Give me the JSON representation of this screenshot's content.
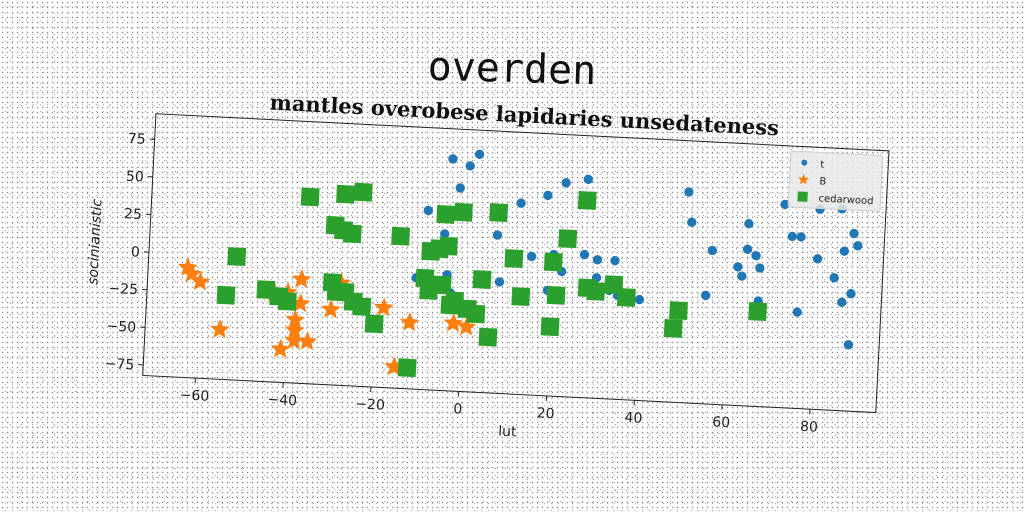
{
  "suptitle": "overden",
  "chart_data": {
    "type": "scatter",
    "title": "mantles overobese lapidaries unsedateness",
    "xlabel": "lut",
    "ylabel": "socinianistic",
    "xlim": [
      -72,
      95
    ],
    "ylim": [
      -82,
      92
    ],
    "xticks": [
      -60,
      -40,
      -20,
      0,
      20,
      40,
      60,
      80
    ],
    "yticks": [
      -75,
      -50,
      -25,
      0,
      25,
      50,
      75
    ],
    "xtick_labels": [
      "−60",
      "−40",
      "−20",
      "0",
      "20",
      "40",
      "60",
      "80"
    ],
    "ytick_labels": [
      "−75",
      "−50",
      "−25",
      "0",
      "25",
      "50",
      "75"
    ],
    "grid": false,
    "legend_position": "upper right",
    "series": [
      {
        "name": "t",
        "marker": "circle",
        "color": "#1f77b4",
        "points": [
          [
            -4,
            72
          ],
          [
            0,
            68
          ],
          [
            2,
            76
          ],
          [
            -2,
            53
          ],
          [
            8,
            38
          ],
          [
            -9,
            37
          ],
          [
            12,
            45
          ],
          [
            18,
            51
          ],
          [
            22,
            60
          ],
          [
            27,
            63
          ],
          [
            28,
            50
          ],
          [
            50,
            58
          ],
          [
            51,
            38
          ],
          [
            64,
            39
          ],
          [
            72,
            53
          ],
          [
            76,
            32
          ],
          [
            80,
            51
          ],
          [
            85,
            52
          ],
          [
            88,
            36
          ],
          [
            7,
            23
          ],
          [
            -5,
            22
          ],
          [
            15,
            10
          ],
          [
            20,
            12
          ],
          [
            27,
            13
          ],
          [
            30,
            10
          ],
          [
            34,
            10
          ],
          [
            22,
            1
          ],
          [
            30,
            -2
          ],
          [
            33,
            -10
          ],
          [
            35,
            -13
          ],
          [
            40,
            -15
          ],
          [
            -11,
            -8
          ],
          [
            -4,
            -5
          ],
          [
            -3,
            -17
          ],
          [
            8,
            -8
          ],
          [
            19,
            -12
          ],
          [
            56,
            20
          ],
          [
            62,
            10
          ],
          [
            63,
            4
          ],
          [
            64,
            22
          ],
          [
            66,
            18
          ],
          [
            67,
            10
          ],
          [
            67,
            -12
          ],
          [
            55,
            -10
          ],
          [
            74,
            32
          ],
          [
            80,
            18
          ],
          [
            86,
            24
          ],
          [
            89,
            28
          ],
          [
            84,
            6
          ],
          [
            88,
            -4
          ],
          [
            86,
            -10
          ],
          [
            76,
            -18
          ],
          [
            88,
            -38
          ]
        ]
      },
      {
        "name": "B",
        "marker": "star",
        "color": "#ff7f0e",
        "points": [
          [
            -63,
            -9
          ],
          [
            -62,
            -13
          ],
          [
            -60,
            -18
          ],
          [
            -55,
            -49
          ],
          [
            -43,
            -23
          ],
          [
            -40,
            -22
          ],
          [
            -38,
            -40
          ],
          [
            -38,
            -47
          ],
          [
            -38,
            -54
          ],
          [
            -35,
            -54
          ],
          [
            -41,
            -60
          ],
          [
            -37,
            -13
          ],
          [
            -37,
            -29
          ],
          [
            -28,
            -14
          ],
          [
            -30,
            -32
          ],
          [
            -18,
            -29
          ],
          [
            -12,
            -38
          ],
          [
            -15,
            -68
          ],
          [
            -2,
            -37
          ],
          [
            1,
            -39
          ]
        ]
      },
      {
        "name": "cedarwood",
        "marker": "square",
        "color": "#2ca02c",
        "points": [
          [
            -52,
            0
          ],
          [
            -54,
            -26
          ],
          [
            -45,
            -21
          ],
          [
            -42,
            -25
          ],
          [
            -40,
            -28
          ],
          [
            -36,
            42
          ],
          [
            -28,
            45
          ],
          [
            -24,
            47
          ],
          [
            -30,
            24
          ],
          [
            -28,
            21
          ],
          [
            -26,
            19
          ],
          [
            -30,
            -14
          ],
          [
            -29,
            -20
          ],
          [
            -25,
            -26
          ],
          [
            -23,
            -29
          ],
          [
            -20,
            -40
          ],
          [
            -15,
            19
          ],
          [
            -8,
            10
          ],
          [
            -6,
            12
          ],
          [
            -4,
            14
          ],
          [
            -12,
            -68
          ],
          [
            -9,
            -8
          ],
          [
            -8,
            -16
          ],
          [
            -5,
            -12
          ],
          [
            -3,
            -25
          ],
          [
            -2,
            -22
          ],
          [
            1,
            -27
          ],
          [
            -5,
            35
          ],
          [
            -1,
            37
          ],
          [
            7,
            38
          ],
          [
            4,
            -7
          ],
          [
            11,
            8
          ],
          [
            13,
            -17
          ],
          [
            21,
            -15
          ],
          [
            23,
            23
          ],
          [
            27,
            49
          ],
          [
            20,
            7
          ],
          [
            28,
            -9
          ],
          [
            30,
            -11
          ],
          [
            34,
            -6
          ],
          [
            37,
            -14
          ],
          [
            3,
            -30
          ],
          [
            6,
            -45
          ],
          [
            20,
            -36
          ],
          [
            49,
            -21
          ],
          [
            48,
            -33
          ],
          [
            67,
            -19
          ],
          [
            -27,
            -20
          ]
        ]
      }
    ]
  }
}
